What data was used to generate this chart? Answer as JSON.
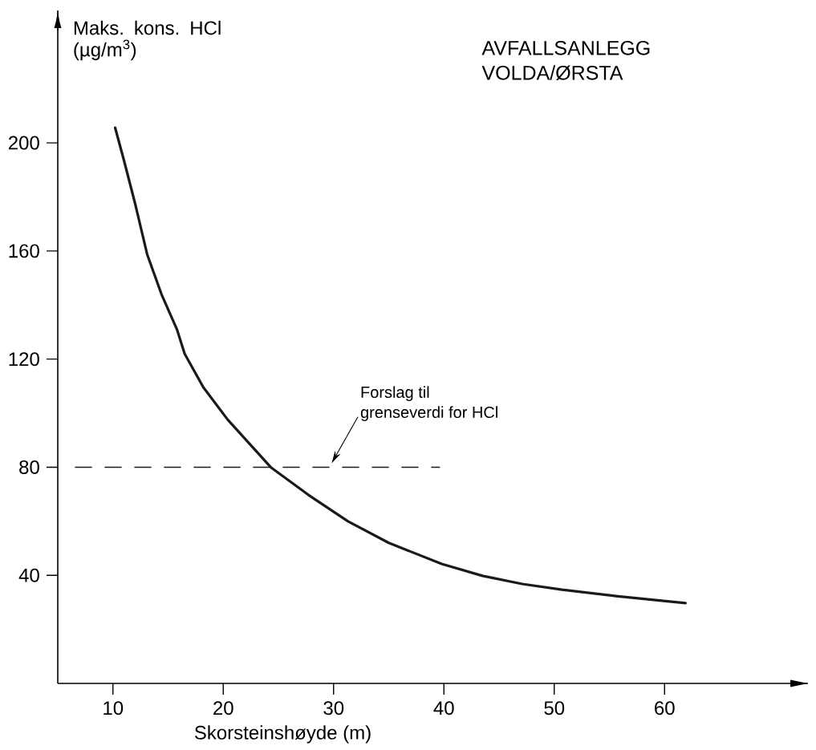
{
  "chart_data": {
    "type": "line",
    "title": "AVFALLSANLEGG",
    "subtitle": "VOLDA/ØRSTA",
    "xlabel": "Skorsteinshøyde (m)",
    "ylabel": "Maks. kons. HCl (µg/m$^{3}$)",
    "xlim": [
      5,
      73
    ],
    "ylim": [
      0,
      249
    ],
    "xticks": [
      10,
      20,
      30,
      40,
      50,
      60
    ],
    "yticks": [
      40,
      80,
      120,
      160,
      200
    ],
    "series": [
      {
        "color": "#1a1a1a",
        "x": [
          10.2,
          11.0,
          12.0,
          13.1,
          14.4,
          15.8,
          16.5,
          18.2,
          20.4,
          24.3,
          27.7,
          31.3,
          35.0,
          39.8,
          43.5,
          47.1,
          50.7,
          55.6,
          61.9
        ],
        "values": [
          205.6,
          193.5,
          177.7,
          158.8,
          144,
          131,
          122,
          109.5,
          97.6,
          80,
          69.8,
          60,
          52,
          44.2,
          39.8,
          36.8,
          34.7,
          32.3,
          29.7
        ]
      },
      {
        "color": "#1a1a1a",
        "line_style": "dashed",
        "x": [
          6.6,
          39.6
        ],
        "values": [
          80,
          80
        ]
      }
    ],
    "annotations": [
      "Forslag til grenseverdi for HCl"
    ]
  }
}
